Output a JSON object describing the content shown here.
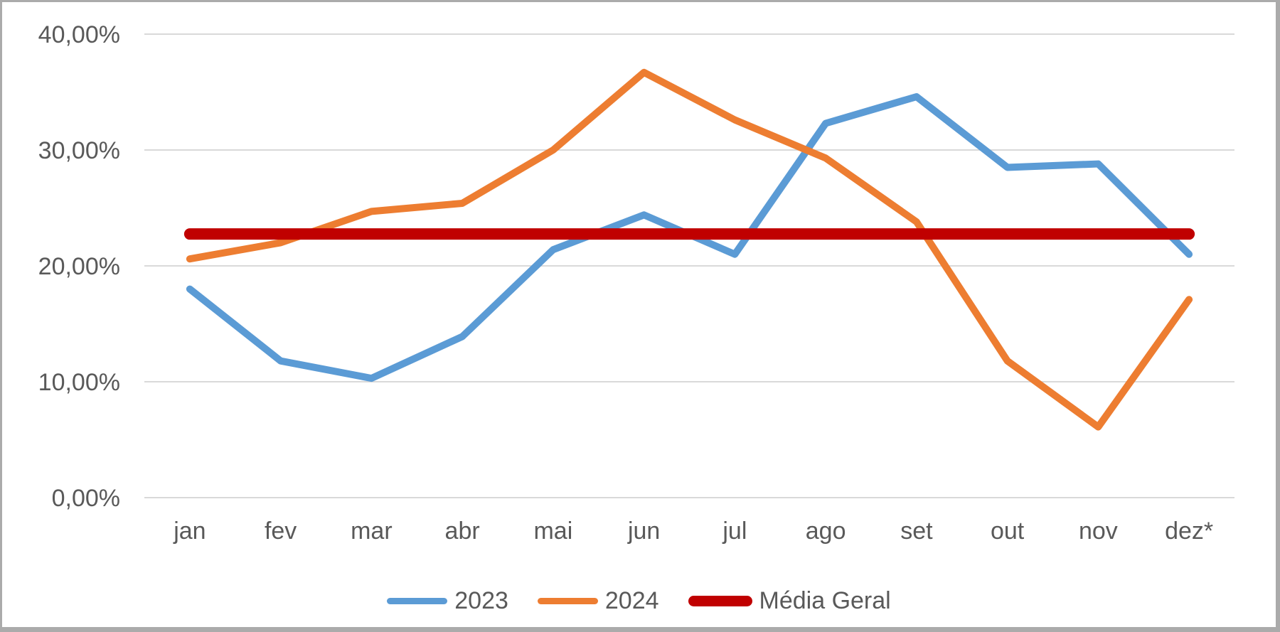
{
  "chart_data": {
    "type": "line",
    "title": "",
    "categories": [
      "jan",
      "fev",
      "mar",
      "abr",
      "mai",
      "jun",
      "jul",
      "ago",
      "set",
      "out",
      "nov",
      "dez*"
    ],
    "series": [
      {
        "name": "2023",
        "color": "#5B9BD5",
        "stroke_width": 10,
        "values": [
          18.0,
          11.8,
          10.3,
          13.9,
          21.4,
          24.4,
          21.0,
          32.3,
          34.6,
          28.5,
          28.8,
          21.0
        ]
      },
      {
        "name": "2024",
        "color": "#ED7D31",
        "stroke_width": 10,
        "values": [
          20.6,
          22.0,
          24.7,
          25.4,
          30.0,
          36.7,
          32.6,
          29.3,
          23.8,
          11.8,
          6.1,
          17.1
        ]
      },
      {
        "name": "Média Geral",
        "color": "#C00000",
        "stroke_width": 16,
        "reference_value": 22.75
      }
    ],
    "y_axis": {
      "min": 0,
      "max": 40,
      "tick_step": 10,
      "tick_values": [
        40,
        30,
        20,
        10,
        0
      ],
      "tick_labels": [
        "40,00%",
        "30,00%",
        "20,00%",
        "10,00%",
        "0,00%"
      ]
    },
    "x_axis": {
      "labels": [
        "jan",
        "fev",
        "mar",
        "abr",
        "mai",
        "jun",
        "jul",
        "ago",
        "set",
        "out",
        "nov",
        "dez*"
      ]
    },
    "legend": {
      "position": "bottom",
      "entries": [
        "2023",
        "2024",
        "Média Geral"
      ]
    },
    "grid": true
  },
  "colors": {
    "background": "#FFFFFF",
    "frame_border": "#ABABAB",
    "gridline": "#D9D9D9",
    "axis_text": "#595959"
  }
}
